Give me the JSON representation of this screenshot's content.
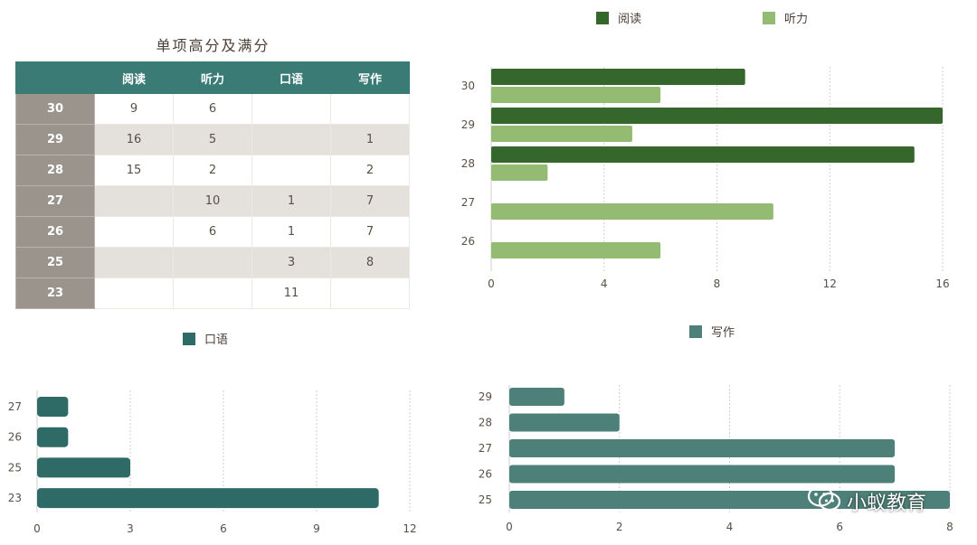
{
  "table": {
    "title": "单项高分及满分",
    "headers": [
      "",
      "阅读",
      "听力",
      "口语",
      "写作"
    ],
    "rows": [
      [
        "30",
        "9",
        "6",
        "",
        ""
      ],
      [
        "29",
        "16",
        "5",
        "",
        "1"
      ],
      [
        "28",
        "15",
        "2",
        "",
        "2"
      ],
      [
        "27",
        "",
        "10",
        "1",
        "7"
      ],
      [
        "26",
        "",
        "6",
        "1",
        "7"
      ],
      [
        "25",
        "",
        "",
        "3",
        "8"
      ],
      [
        "23",
        "",
        "",
        "11",
        ""
      ]
    ]
  },
  "colors": {
    "reading": "#35662c",
    "listening": "#94bb72",
    "speaking": "#2f6b66",
    "writing": "#4d8078",
    "grid": "#cfcfcf",
    "axis_text": "#5a4f45",
    "table_header": "#3b7b75",
    "row_head": "#9b948d",
    "row_alt": "#e4e1dd"
  },
  "watermark": {
    "icon": "wechat-icon",
    "text": "小蚁教育"
  },
  "chart_data": [
    {
      "type": "bar",
      "orientation": "horizontal",
      "categories": [
        "30",
        "29",
        "28",
        "27",
        "26"
      ],
      "series": [
        {
          "name": "阅读",
          "values": [
            9,
            16,
            15,
            0,
            0
          ]
        },
        {
          "name": "听力",
          "values": [
            6,
            5,
            2,
            10,
            6
          ]
        }
      ],
      "xlim": [
        0,
        16
      ],
      "xticks": [
        "0",
        "4",
        "8",
        "12",
        "16"
      ],
      "grid": true,
      "legend": "top"
    },
    {
      "type": "bar",
      "orientation": "horizontal",
      "categories": [
        "27",
        "26",
        "25",
        "23"
      ],
      "series": [
        {
          "name": "口语",
          "values": [
            1,
            1,
            3,
            11
          ]
        }
      ],
      "xlim": [
        0,
        12
      ],
      "xticks": [
        "0",
        "3",
        "6",
        "9",
        "12"
      ],
      "grid": true,
      "legend": "top"
    },
    {
      "type": "bar",
      "orientation": "horizontal",
      "categories": [
        "29",
        "28",
        "27",
        "26",
        "25"
      ],
      "series": [
        {
          "name": "写作",
          "values": [
            1,
            2,
            7,
            7,
            8
          ]
        }
      ],
      "xlim": [
        0,
        8
      ],
      "xticks": [
        "0",
        "2",
        "4",
        "6",
        "8"
      ],
      "grid": true,
      "legend": "top"
    }
  ]
}
